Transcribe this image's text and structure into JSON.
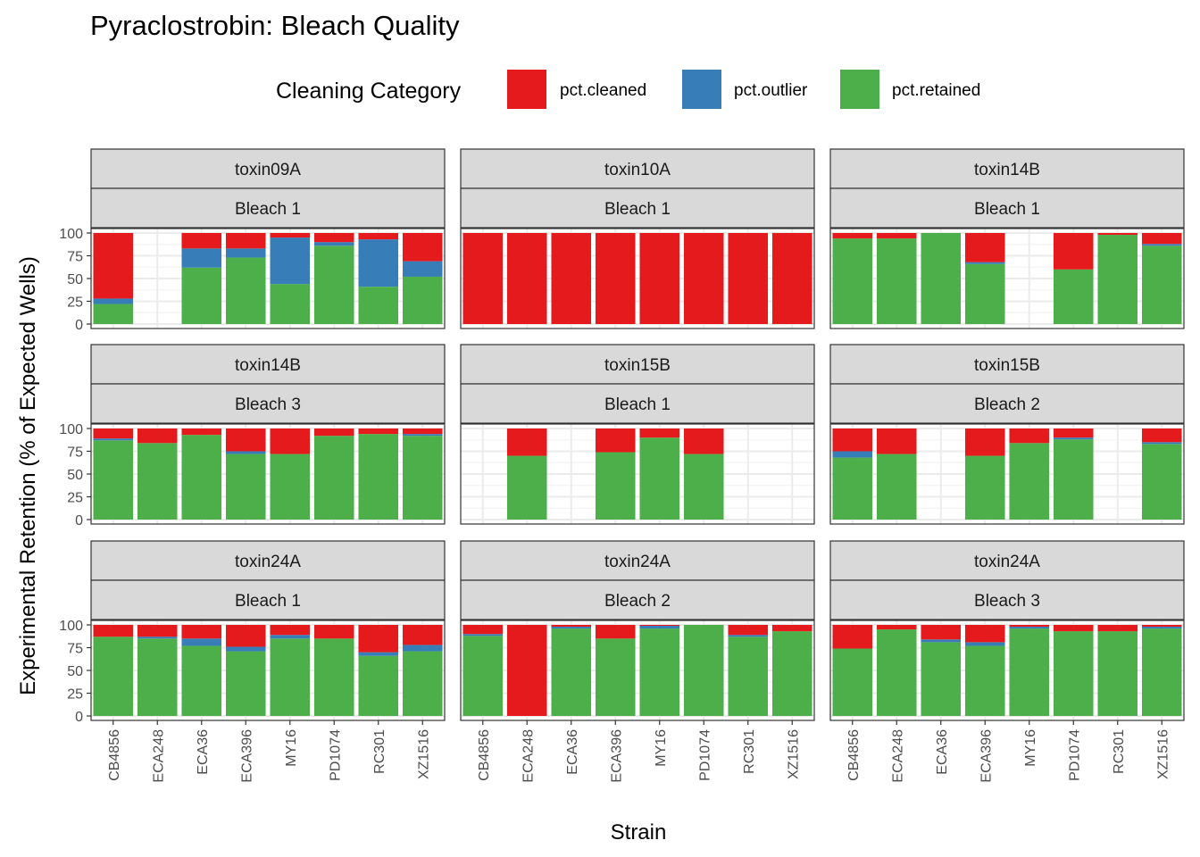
{
  "chart_data": {
    "type": "bar",
    "title": "Pyraclostrobin: Bleach Quality",
    "xlabel": "Strain",
    "ylabel": "Experimental Retention (% of Expected Wells)",
    "ylim": [
      0,
      100
    ],
    "yticks": [
      0,
      25,
      50,
      75,
      100
    ],
    "stacked": true,
    "legend": {
      "title": "Cleaning Category",
      "position": "top",
      "entries": [
        {
          "name": "pct.cleaned",
          "color": "#E41A1C"
        },
        {
          "name": "pct.outlier",
          "color": "#377EB8"
        },
        {
          "name": "pct.retained",
          "color": "#4DAF4A"
        }
      ]
    },
    "categories": [
      "CB4856",
      "ECA248",
      "ECA36",
      "ECA396",
      "MY16",
      "PD1074",
      "RC301",
      "XZ1516"
    ],
    "series_order": [
      "pct.retained",
      "pct.outlier",
      "pct.cleaned"
    ],
    "panels": [
      {
        "strip_top": "toxin09A",
        "strip_bottom": "Bleach 1",
        "retained": [
          22,
          null,
          62,
          73,
          44,
          86,
          41,
          52
        ],
        "outlier": [
          6,
          null,
          21,
          10,
          51,
          4,
          52,
          17
        ],
        "cleaned": [
          72,
          null,
          17,
          17,
          5,
          10,
          7,
          31
        ]
      },
      {
        "strip_top": "toxin10A",
        "strip_bottom": "Bleach 1",
        "retained": [
          0,
          0,
          0,
          0,
          0,
          0,
          0,
          0
        ],
        "outlier": [
          0,
          0,
          0,
          0,
          0,
          0,
          0,
          0
        ],
        "cleaned": [
          100,
          100,
          100,
          100,
          100,
          100,
          100,
          100
        ]
      },
      {
        "strip_top": "toxin14B",
        "strip_bottom": "Bleach 1",
        "retained": [
          94,
          94,
          100,
          66,
          null,
          60,
          98,
          86
        ],
        "outlier": [
          0,
          0,
          0,
          2,
          null,
          0,
          0,
          2
        ],
        "cleaned": [
          6,
          6,
          0,
          32,
          null,
          40,
          2,
          12
        ]
      },
      {
        "strip_top": "toxin14B",
        "strip_bottom": "Bleach 3",
        "retained": [
          87,
          84,
          93,
          72,
          72,
          92,
          94,
          92
        ],
        "outlier": [
          2,
          0,
          0,
          3,
          0,
          0,
          0,
          2
        ],
        "cleaned": [
          11,
          16,
          7,
          25,
          28,
          8,
          6,
          6
        ]
      },
      {
        "strip_top": "toxin15B",
        "strip_bottom": "Bleach 1",
        "retained": [
          null,
          70,
          null,
          74,
          90,
          null,
          null,
          null
        ],
        "outlier": [
          null,
          0,
          null,
          0,
          0,
          null,
          null,
          null
        ],
        "cleaned": [
          null,
          30,
          null,
          26,
          10,
          null,
          null,
          null
        ],
        "pd1074_override": {
          "index": 5,
          "retained": 72,
          "outlier": 0,
          "cleaned": 28
        }
      },
      {
        "strip_top": "toxin15B",
        "strip_bottom": "Bleach 2",
        "retained": [
          68,
          72,
          null,
          70,
          84,
          88,
          null,
          83
        ],
        "outlier": [
          7,
          0,
          null,
          0,
          0,
          2,
          null,
          2
        ],
        "cleaned": [
          25,
          28,
          null,
          30,
          16,
          10,
          null,
          15
        ]
      },
      {
        "strip_top": "toxin24A",
        "strip_bottom": "Bleach 1",
        "retained": [
          87,
          85,
          77,
          71,
          85,
          85,
          66,
          71
        ],
        "outlier": [
          0,
          2,
          8,
          5,
          4,
          0,
          4,
          7
        ],
        "cleaned": [
          13,
          13,
          15,
          24,
          11,
          15,
          30,
          22
        ]
      },
      {
        "strip_top": "toxin24A",
        "strip_bottom": "Bleach 2",
        "retained": [
          88,
          0,
          96,
          85,
          96,
          100,
          87,
          93
        ],
        "outlier": [
          2,
          0,
          2,
          0,
          3,
          0,
          2,
          0
        ],
        "cleaned": [
          10,
          100,
          2,
          15,
          1,
          0,
          11,
          7
        ]
      },
      {
        "strip_top": "toxin24A",
        "strip_bottom": "Bleach 3",
        "retained": [
          74,
          95,
          81,
          77,
          96,
          93,
          93,
          96
        ],
        "outlier": [
          0,
          0,
          3,
          4,
          2,
          0,
          0,
          2
        ],
        "cleaned": [
          26,
          5,
          16,
          19,
          2,
          7,
          7,
          2
        ]
      }
    ]
  }
}
